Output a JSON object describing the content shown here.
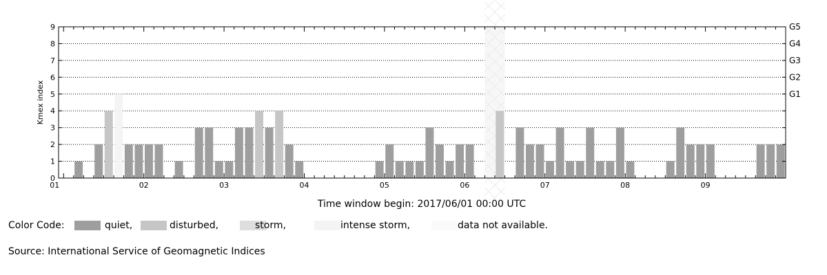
{
  "chart_data": {
    "type": "bar",
    "ylabel": "Kmex index",
    "ylim": [
      0,
      9
    ],
    "yticks": [
      "0",
      "1",
      "2",
      "3",
      "4",
      "5",
      "6",
      "7",
      "8",
      "9"
    ],
    "right_labels": [
      {
        "value": 5,
        "label": "G1"
      },
      {
        "value": 6,
        "label": "G2"
      },
      {
        "value": 7,
        "label": "G3"
      },
      {
        "value": 8,
        "label": "G4"
      },
      {
        "value": 9,
        "label": "G5"
      }
    ],
    "xticks": [
      "01",
      "02",
      "03",
      "04",
      "05",
      "06",
      "07",
      "08",
      "09"
    ],
    "x_caption": "Time window begin: 2017/06/01 00:00 UTC",
    "intervals_per_day": 8,
    "values": [
      0,
      1,
      0,
      2,
      4,
      5,
      2,
      2,
      2,
      2,
      0,
      1,
      0,
      3,
      3,
      1,
      1,
      3,
      3,
      4,
      3,
      4,
      2,
      1,
      0,
      0,
      0,
      0,
      0,
      0,
      0,
      1,
      2,
      1,
      1,
      1,
      3,
      2,
      1,
      2,
      2,
      0,
      0,
      4,
      0,
      3,
      2,
      2,
      1,
      3,
      1,
      1,
      3,
      1,
      1,
      3,
      1,
      0,
      0,
      0,
      1,
      3,
      2,
      2,
      2,
      0,
      0,
      0,
      0,
      2,
      2,
      2
    ],
    "not_available": [
      42,
      43
    ],
    "grid": "dotted horizontal",
    "colors": {
      "quiet": "#9e9e9e",
      "disturbed": "#c6c6c6",
      "storm": "#dedede",
      "intense_storm": "#f4f4f4",
      "not_available": "#f7f7f7"
    }
  },
  "legend": {
    "title": "Color Code:",
    "quiet": "quiet,",
    "disturbed": "disturbed,",
    "storm": "storm,",
    "intense_storm": "intense storm,",
    "not_available": "data not available."
  },
  "source": "Source: International Service of Geomagnetic Indices"
}
